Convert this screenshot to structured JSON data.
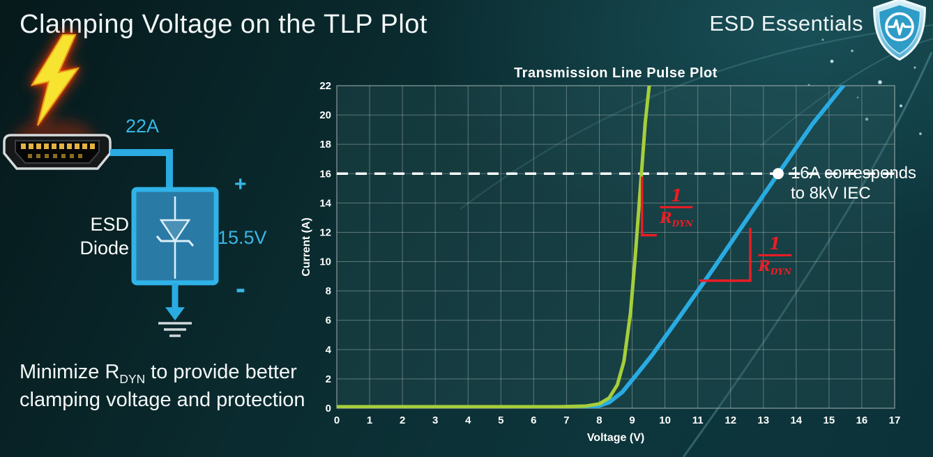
{
  "header": {
    "title": "Clamping Voltage on the TLP Plot",
    "brand": "ESD Essentials"
  },
  "diagram": {
    "surge_label": "22A",
    "device_line1": "ESD",
    "device_line2": "Diode",
    "plus": "+",
    "voltage": "15.5V",
    "minus": "-"
  },
  "caption": {
    "part1": "Minimize R",
    "sub": "DYN",
    "part2": " to provide better clamping voltage and protection"
  },
  "chart_data": {
    "type": "line",
    "title": "Transmission Line Pulse Plot",
    "xlabel": "Voltage (V)",
    "ylabel": "Current (A)",
    "xlim": [
      0,
      17
    ],
    "ylim": [
      0,
      22
    ],
    "x_ticks": [
      0,
      1,
      2,
      3,
      4,
      5,
      6,
      7,
      8,
      9,
      10,
      11,
      12,
      13,
      14,
      15,
      16,
      17
    ],
    "y_ticks": [
      0,
      2,
      4,
      6,
      8,
      10,
      12,
      14,
      16,
      18,
      20,
      22
    ],
    "grid": true,
    "grid_color": "rgba(155,172,172,0.55)",
    "series": [
      {
        "id": "blue-curve",
        "color": "#29abe2",
        "width": 6,
        "points": [
          [
            0,
            0.05
          ],
          [
            7.2,
            0.05
          ],
          [
            7.9,
            0.1
          ],
          [
            8.3,
            0.4
          ],
          [
            8.7,
            1.1
          ],
          [
            9.1,
            2.2
          ],
          [
            9.6,
            3.6
          ],
          [
            10.5,
            6.4
          ],
          [
            11.5,
            9.6
          ],
          [
            12.5,
            12.9
          ],
          [
            13.45,
            16
          ],
          [
            14.5,
            19.4
          ],
          [
            15.65,
            22.6
          ]
        ]
      },
      {
        "id": "green-curve",
        "color": "#a6ce39",
        "width": 5,
        "points": [
          [
            0,
            0.1
          ],
          [
            6.8,
            0.1
          ],
          [
            7.6,
            0.15
          ],
          [
            8.0,
            0.3
          ],
          [
            8.3,
            0.7
          ],
          [
            8.55,
            1.6
          ],
          [
            8.75,
            3.2
          ],
          [
            8.95,
            6.5
          ],
          [
            9.1,
            10.5
          ],
          [
            9.25,
            15
          ],
          [
            9.4,
            19.5
          ],
          [
            9.55,
            22.6
          ]
        ]
      }
    ],
    "reference_line": {
      "y": 16,
      "style": "dashed",
      "color": "#ffffff"
    },
    "marker": {
      "x": 13.45,
      "y": 16,
      "label_line1": "16A corresponds",
      "label_line2": "to 8kV IEC"
    },
    "annotation_color": "#ed1c24",
    "slope_annotations": [
      {
        "numerator": "1",
        "den_main": "R",
        "den_sub": "DYN",
        "bracket": [
          [
            9.3,
            15.8
          ],
          [
            9.3,
            11.8
          ],
          [
            9.75,
            11.8
          ]
        ],
        "label_x": 10.35,
        "label_y": 13.7
      },
      {
        "numerator": "1",
        "den_main": "R",
        "den_sub": "DYN",
        "bracket": [
          [
            11.05,
            8.7
          ],
          [
            12.6,
            8.7
          ],
          [
            12.6,
            12.3
          ]
        ],
        "label_x": 13.35,
        "label_y": 10.4
      }
    ]
  }
}
